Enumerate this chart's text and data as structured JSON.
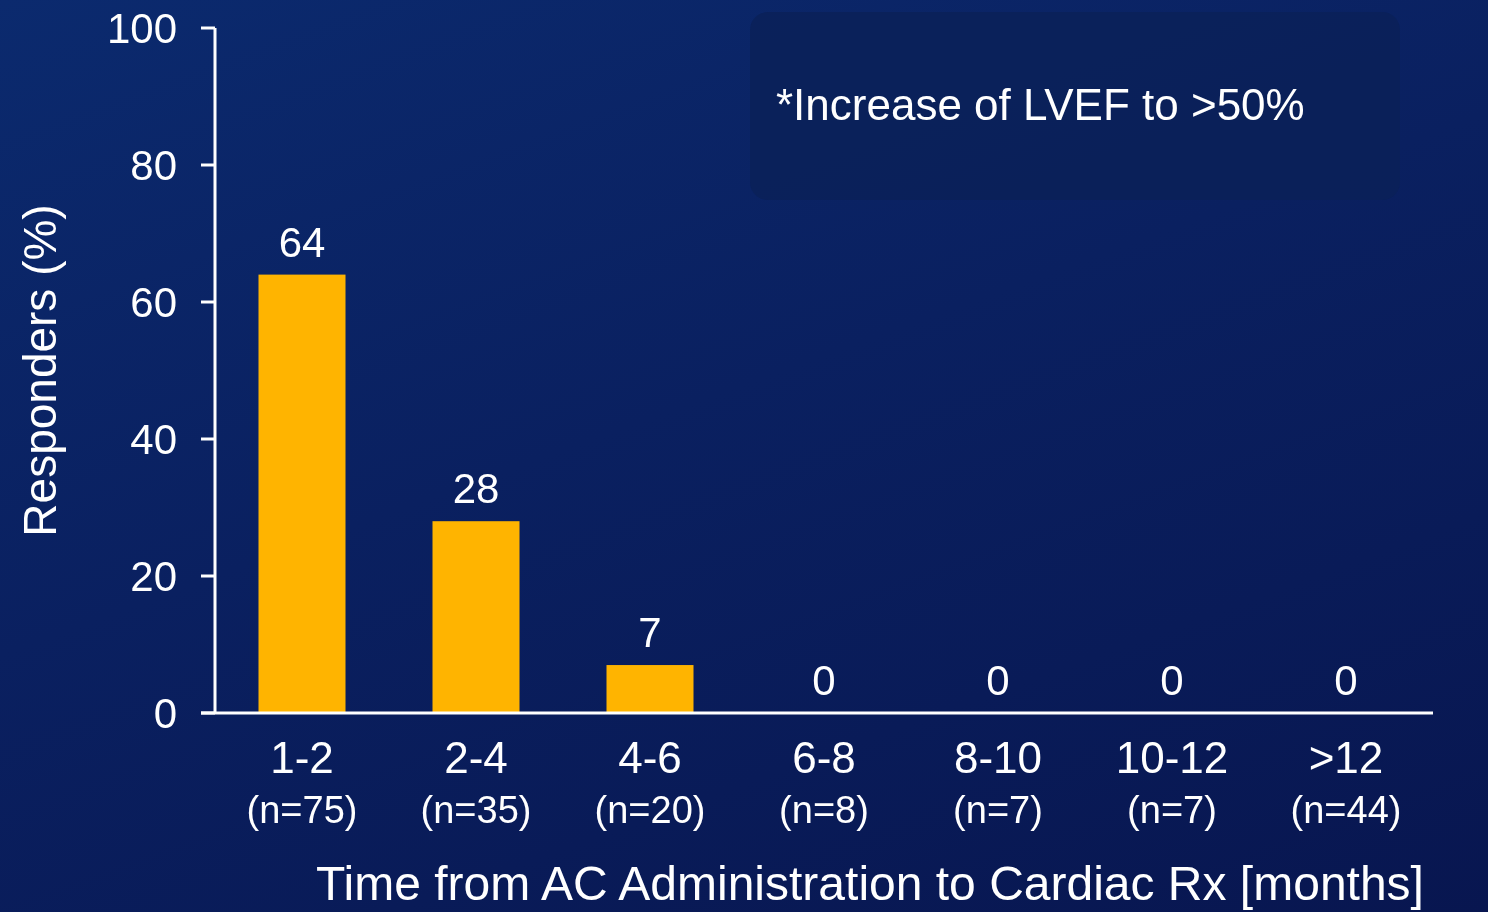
{
  "chart_data": {
    "type": "bar",
    "xlabel": "Time from AC Administration to Cardiac Rx [months]",
    "ylabel": "Responders (%)",
    "categories": [
      "1-2\n(n=75)",
      "2-4\n(n=35)",
      "4-6\n(n=20)",
      "6-8\n(n=8)",
      "8-10\n(n=7)",
      "10-12\n(n=7)",
      ">12\n(n=44)"
    ],
    "values": [
      64,
      28,
      7,
      0,
      0,
      0,
      0
    ],
    "color": "#ffb400",
    "ylim": [
      0,
      100
    ],
    "yticks": [
      0,
      20,
      40,
      60,
      80,
      100
    ],
    "data_labels": true,
    "annotations": [
      "*Increase of LVEF to >50%"
    ]
  }
}
